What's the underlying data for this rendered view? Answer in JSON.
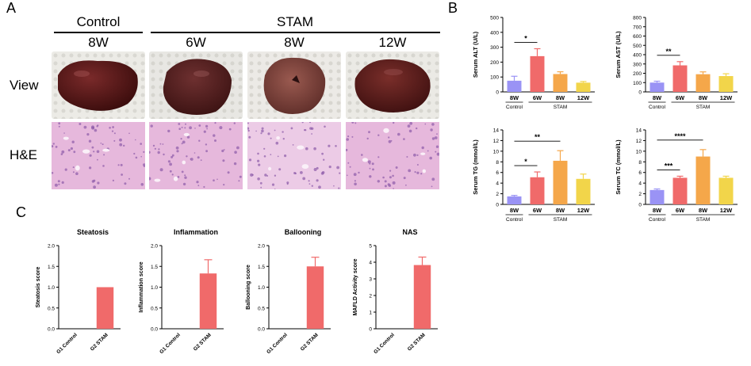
{
  "panels": {
    "a": "A",
    "b": "B",
    "c": "C"
  },
  "panel_a": {
    "group_control": "Control",
    "group_stam": "STAM",
    "timepoints": [
      "8W",
      "6W",
      "8W",
      "12W"
    ],
    "row_labels": [
      "View",
      "H&E"
    ]
  },
  "colors": {
    "control": "#9a93f5",
    "6W": "#f06a6a",
    "8W": "#f5a74a",
    "12W": "#f2d54a",
    "stam_c": "#f06a6a",
    "liver": "#5a1a1a",
    "he_bg": "#e6b8dc",
    "he_dot": "#8c5aa8"
  },
  "chart_data": [
    {
      "type": "bar",
      "id": "alt",
      "categories": [
        "8W",
        "6W",
        "8W",
        "12W"
      ],
      "group_labels": [
        "Control",
        "STAM"
      ],
      "values": [
        75,
        240,
        120,
        62
      ],
      "errors": [
        30,
        50,
        15,
        8
      ],
      "ylabel": "Serum ALT (U/L)",
      "ylim": [
        0,
        500
      ],
      "yticks": [
        0,
        100,
        200,
        300,
        400,
        500
      ],
      "significance": [
        {
          "from": 0,
          "to": 1,
          "label": "*"
        }
      ]
    },
    {
      "type": "bar",
      "id": "ast",
      "categories": [
        "8W",
        "6W",
        "8W",
        "12W"
      ],
      "group_labels": [
        "Control",
        "STAM"
      ],
      "values": [
        100,
        285,
        190,
        170
      ],
      "errors": [
        15,
        40,
        25,
        25
      ],
      "ylabel": "Serum AST (U/L)",
      "ylim": [
        0,
        800
      ],
      "yticks": [
        0,
        100,
        200,
        300,
        400,
        500,
        600,
        700,
        800
      ],
      "significance": [
        {
          "from": 0,
          "to": 1,
          "label": "**"
        }
      ]
    },
    {
      "type": "bar",
      "id": "tg",
      "categories": [
        "8W",
        "6W",
        "8W",
        "12W"
      ],
      "group_labels": [
        "Control",
        "STAM"
      ],
      "values": [
        1.5,
        5.1,
        8.2,
        4.8
      ],
      "errors": [
        0.2,
        1.0,
        1.9,
        0.9
      ],
      "ylabel": "Serum TG (mmol/L)",
      "ylim": [
        0,
        14
      ],
      "yticks": [
        0,
        2,
        4,
        6,
        8,
        10,
        12,
        14
      ],
      "significance": [
        {
          "from": 0,
          "to": 1,
          "label": "*"
        },
        {
          "from": 0,
          "to": 2,
          "label": "**"
        }
      ]
    },
    {
      "type": "bar",
      "id": "tc",
      "categories": [
        "8W",
        "6W",
        "8W",
        "12W"
      ],
      "group_labels": [
        "Control",
        "STAM"
      ],
      "values": [
        2.7,
        5.0,
        9.0,
        5.0
      ],
      "errors": [
        0.2,
        0.3,
        1.3,
        0.3
      ],
      "ylabel": "Serum TC (mmol/L)",
      "ylim": [
        0,
        14
      ],
      "yticks": [
        0,
        2,
        4,
        6,
        8,
        10,
        12,
        14
      ],
      "significance": [
        {
          "from": 0,
          "to": 1,
          "label": "***"
        },
        {
          "from": 0,
          "to": 2,
          "label": "****"
        }
      ]
    },
    {
      "type": "bar",
      "id": "steatosis",
      "title": "Steatosis",
      "categories": [
        "G1 Control",
        "G2 STAM"
      ],
      "values": [
        0,
        1.0
      ],
      "errors": [
        0,
        0
      ],
      "ylabel": "Steatosis score",
      "ylim": [
        0,
        2.0
      ],
      "yticks": [
        "0.0",
        "0.5",
        "1.0",
        "1.5",
        "2.0"
      ]
    },
    {
      "type": "bar",
      "id": "inflammation",
      "title": "Inflammation",
      "categories": [
        "G1 Control",
        "G2 STAM"
      ],
      "values": [
        0,
        1.33
      ],
      "errors": [
        0,
        0.33
      ],
      "ylabel": "Inflammation score",
      "ylim": [
        0,
        2.0
      ],
      "yticks": [
        "0.0",
        "0.5",
        "1.0",
        "1.5",
        "2.0"
      ]
    },
    {
      "type": "bar",
      "id": "ballooning",
      "title": "Ballooning",
      "categories": [
        "G1 Control",
        "G2 STAM"
      ],
      "values": [
        0,
        1.5
      ],
      "errors": [
        0,
        0.22
      ],
      "ylabel": "Ballooning score",
      "ylim": [
        0,
        2.0
      ],
      "yticks": [
        "0.0",
        "0.5",
        "1.0",
        "1.5",
        "2.0"
      ]
    },
    {
      "type": "bar",
      "id": "nas",
      "title": "NAS",
      "categories": [
        "G1 Control",
        "G2 STAM"
      ],
      "values": [
        0,
        3.83
      ],
      "errors": [
        0,
        0.48
      ],
      "ylabel": "MAFLD Activity score",
      "ylim": [
        0,
        5
      ],
      "yticks": [
        "0",
        "1",
        "2",
        "3",
        "4",
        "5"
      ]
    }
  ]
}
